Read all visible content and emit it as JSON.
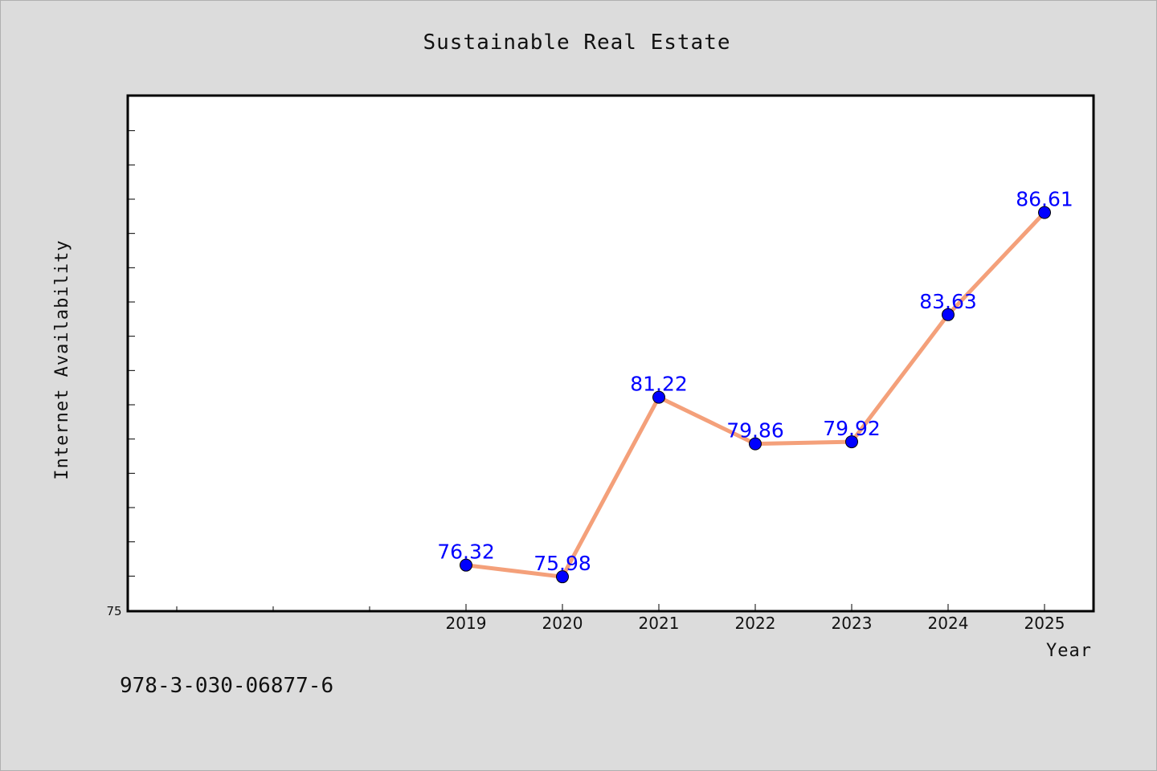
{
  "chart_data": {
    "type": "line",
    "title": "Sustainable Real Estate",
    "xlabel": "Year",
    "ylabel": "Internet Availability",
    "x": [
      "2019",
      "2020",
      "2021",
      "2022",
      "2023",
      "2024",
      "2025"
    ],
    "series": [
      {
        "values": [
          76.32,
          75.98,
          81.22,
          79.86,
          79.92,
          83.63,
          86.61
        ]
      }
    ],
    "data_labels": [
      "76.32",
      "75.98",
      "81.22",
      "79.86",
      "79.92",
      "83.63",
      "86.61"
    ],
    "ylim": [
      75,
      90
    ],
    "y_tick_label": "75",
    "grid": false,
    "legend": "none",
    "line_color": "#f4a07a",
    "marker_color": "#0000ff",
    "label_color": "#0000ff"
  },
  "footer": {
    "isbn": "978-3-030-06877-6"
  }
}
